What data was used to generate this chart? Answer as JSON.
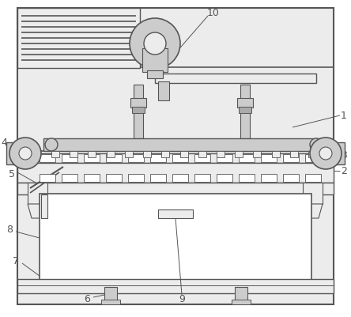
{
  "bg_color": "#ffffff",
  "line_color": "#555555",
  "fill_light": "#ececec",
  "fill_medium": "#cccccc",
  "fill_dark": "#aaaaaa",
  "figsize": [
    4.44,
    4.01
  ],
  "dpi": 100
}
